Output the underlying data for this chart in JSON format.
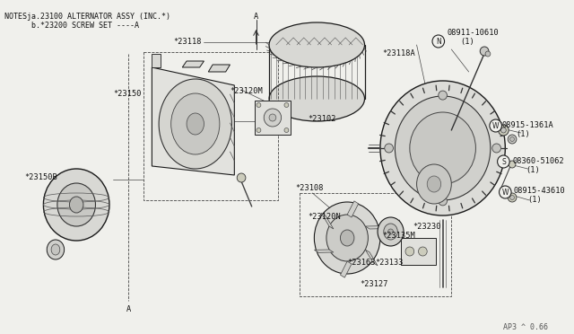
{
  "bg": "#f0f0ec",
  "fg": "#1a1a1a",
  "title1": "NOTESja.23100 ALTERNATOR ASSY (INC.*)",
  "title2": "      b.*23200 SCREW SET ----A",
  "watermark": "AP3 ^ 0.66",
  "fig_width": 6.4,
  "fig_height": 3.72,
  "dpi": 100
}
